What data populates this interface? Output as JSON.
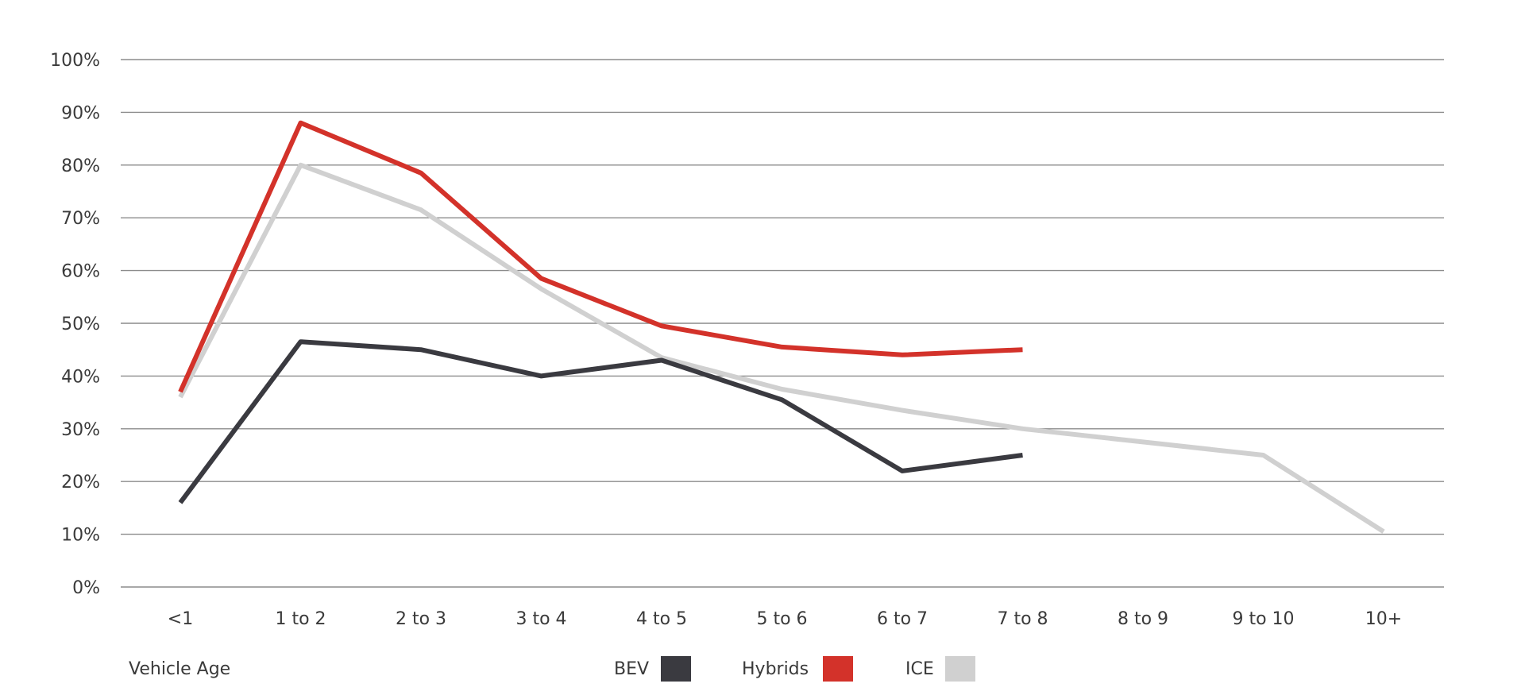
{
  "chart_data": {
    "type": "line",
    "title": "",
    "xlabel": "Vehicle Age",
    "ylabel": "",
    "ylim": [
      0,
      100
    ],
    "yticks": [
      0,
      10,
      20,
      30,
      40,
      50,
      60,
      70,
      80,
      90,
      100
    ],
    "ytick_format": "{v}%",
    "grid": true,
    "legend_position": "bottom-center",
    "categories": [
      "<1",
      "1 to 2",
      "2 to 3",
      "3 to 4",
      "4 to 5",
      "5 to 6",
      "6 to 7",
      "7 to 8",
      "8 to 9",
      "9 to 10",
      "10+"
    ],
    "series": [
      {
        "name": "ICE",
        "color": "#d0d0d0",
        "values": [
          36,
          80,
          71.5,
          56.5,
          43.5,
          37.5,
          33.5,
          30,
          27.5,
          25,
          10.5
        ]
      },
      {
        "name": "BEV",
        "color": "#3a3a40",
        "values": [
          16,
          46.5,
          45,
          40,
          43,
          35.5,
          22,
          25,
          null,
          null,
          null
        ]
      },
      {
        "name": "Hybrids",
        "color": "#d3322a",
        "values": [
          37,
          88,
          78.5,
          58.5,
          49.5,
          45.5,
          44,
          45,
          null,
          null,
          null
        ]
      }
    ],
    "legend_order": [
      "BEV",
      "Hybrids",
      "ICE"
    ]
  }
}
